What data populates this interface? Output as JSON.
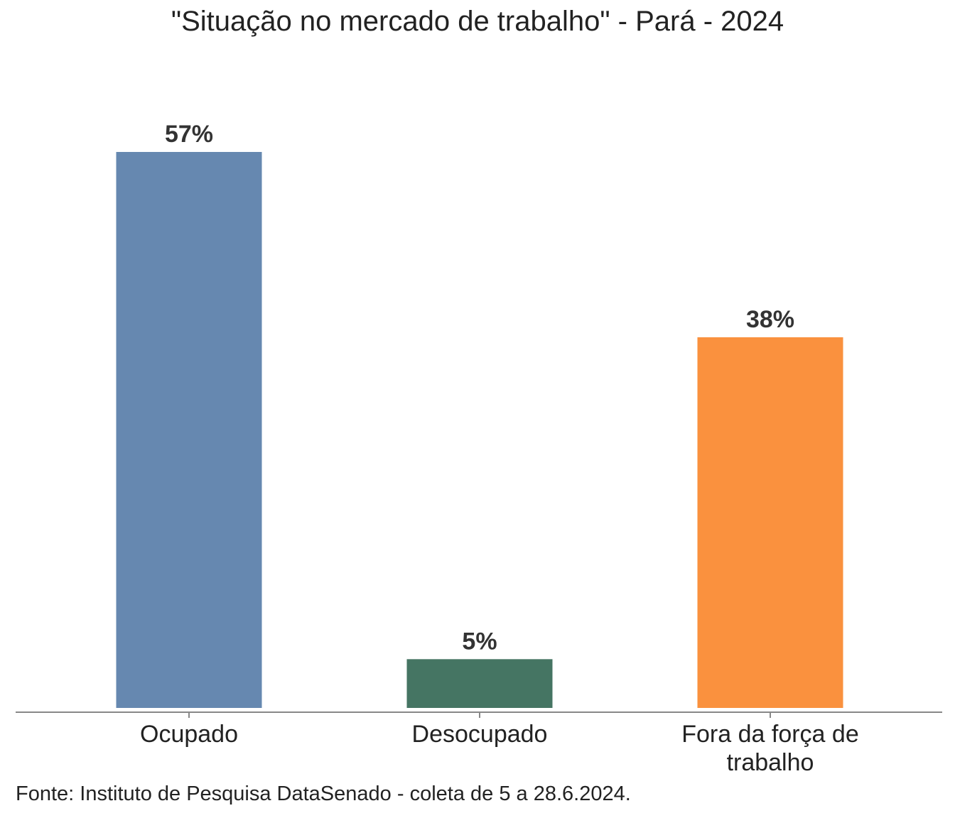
{
  "chart_data": {
    "type": "bar",
    "title": "\"Situação no mercado de trabalho\" - Pará - 2024",
    "categories": [
      [
        "Ocupado"
      ],
      [
        "Desocupado"
      ],
      [
        "Fora da força de",
        "trabalho"
      ]
    ],
    "values": [
      57,
      5,
      38
    ],
    "value_labels": [
      "57%",
      "5%",
      "38%"
    ],
    "colors": [
      "#6688b0",
      "#457563",
      "#fa913e"
    ],
    "xlabel": "",
    "ylabel": "",
    "ylim": [
      0,
      57
    ],
    "grid": false,
    "legend": "none"
  },
  "source": "Fonte: Instituto de Pesquisa DataSenado - coleta de 5 a 28.6.2024."
}
